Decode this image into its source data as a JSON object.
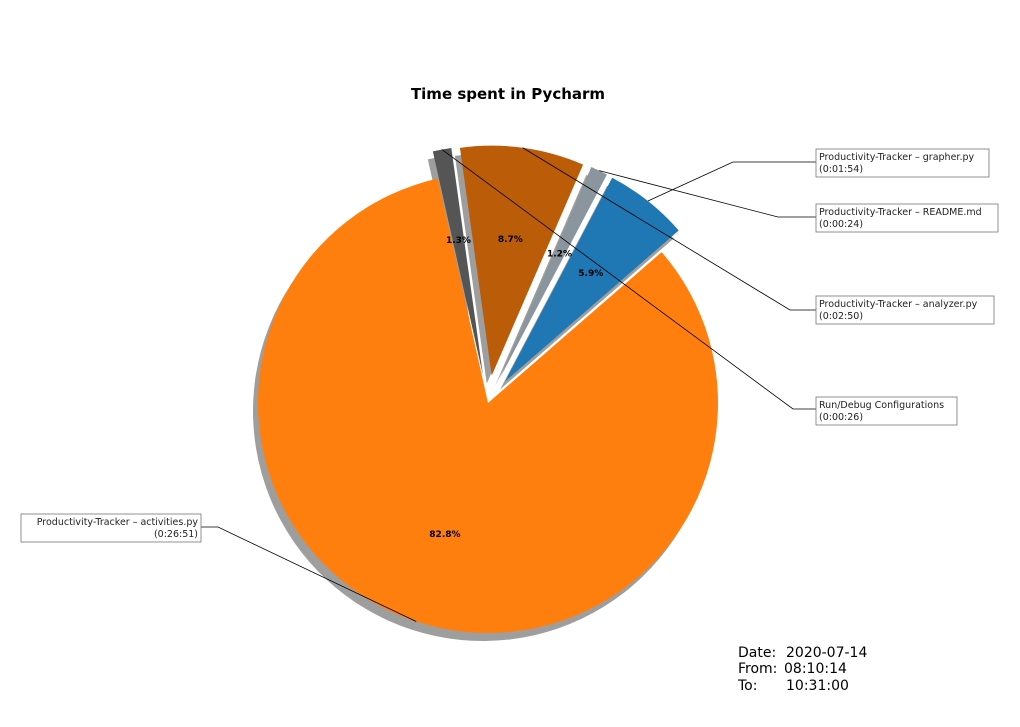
{
  "chart_data": {
    "type": "pie",
    "title": "Time spent in Pycharm",
    "slices": [
      {
        "label": "Productivity-Tracker – grapher.py",
        "time": "(0:01:54)",
        "percent_label": "5.9%",
        "value": 5.9,
        "color": "#1f77b4",
        "exploded": true
      },
      {
        "label": "Productivity-Tracker – README.md",
        "time": "(0:00:24)",
        "percent_label": "1.2%",
        "value": 1.2,
        "color": "#8a959d",
        "exploded": true
      },
      {
        "label": "Productivity-Tracker – analyzer.py",
        "time": "(0:02:50)",
        "percent_label": "8.7%",
        "value": 8.7,
        "color": "#bb5c09",
        "exploded": true
      },
      {
        "label": "Run/Debug Configurations",
        "time": "(0:00:26)",
        "percent_label": "1.3%",
        "value": 1.3,
        "color": "#555555",
        "exploded": true
      },
      {
        "label": "Productivity-Tracker – activities.py",
        "time": "(0:26:51)",
        "percent_label": "82.8%",
        "value": 82.8,
        "color": "#ff7f0e",
        "exploded": false
      }
    ],
    "shadow": true
  },
  "info": {
    "date_label": "Date:",
    "date_value": "2020-07-14",
    "from_label": "From:",
    "from_value": "08:10:14",
    "to_label": "To:",
    "to_value": "10:31:00"
  }
}
